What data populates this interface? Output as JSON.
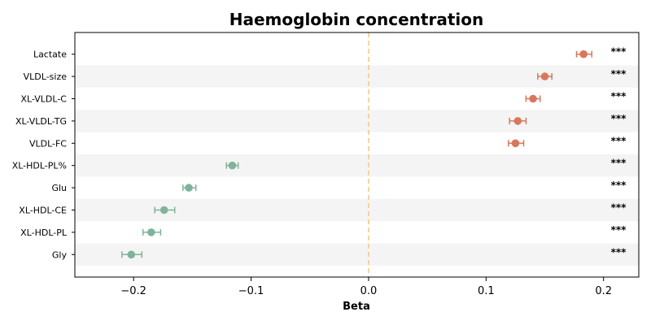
{
  "chart_data": {
    "type": "scatter",
    "title": "Haemoglobin concentration",
    "xlabel": "Beta",
    "ylabel": "",
    "xlim": [
      -0.25,
      0.23
    ],
    "xticks": [
      {
        "value": -0.2,
        "label": "−0.2"
      },
      {
        "value": -0.1,
        "label": "−0.1"
      },
      {
        "value": 0.0,
        "label": "0.0"
      },
      {
        "value": 0.1,
        "label": "0.1"
      },
      {
        "value": 0.2,
        "label": "0.2"
      }
    ],
    "reference_line": {
      "x": 0.0,
      "style": "dashed",
      "color": "#f5c77e"
    },
    "categories": [
      "Lactate",
      "VLDL-size",
      "XL-VLDL-C",
      "XL-VLDL-TG",
      "VLDL-FC",
      "XL-HDL-PL%",
      "Glu",
      "XL-HDL-CE",
      "XL-HDL-PL",
      "Gly"
    ],
    "values": [
      0.183,
      0.15,
      0.14,
      0.127,
      0.125,
      -0.116,
      -0.153,
      -0.174,
      -0.185,
      -0.202
    ],
    "ci_low": [
      0.177,
      0.144,
      0.134,
      0.12,
      0.119,
      -0.121,
      -0.158,
      -0.182,
      -0.192,
      -0.21
    ],
    "ci_high": [
      0.19,
      0.156,
      0.146,
      0.134,
      0.132,
      -0.111,
      -0.147,
      -0.165,
      -0.177,
      -0.193
    ],
    "significance": [
      "***",
      "***",
      "***",
      "***",
      "***",
      "***",
      "***",
      "***",
      "***",
      "***"
    ],
    "colors": {
      "positive": "#d9775d",
      "negative": "#7fb39b",
      "band": "#f4f4f4"
    },
    "grid": false,
    "legend": "none"
  }
}
